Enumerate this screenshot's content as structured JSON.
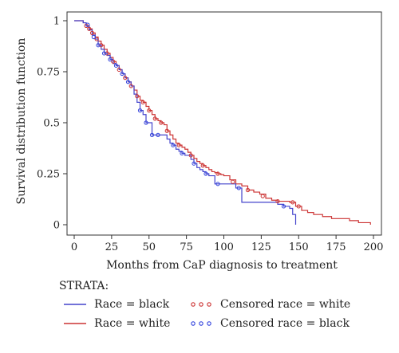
{
  "chart_data": {
    "type": "line",
    "title": "",
    "xlabel": "Months from CaP diagnosis to treatment",
    "ylabel": "Survival distribution function",
    "xlim": [
      0,
      200
    ],
    "ylim": [
      0,
      1
    ],
    "x_ticks": [
      0,
      25,
      50,
      75,
      100,
      125,
      150,
      175,
      200
    ],
    "y_ticks": [
      0,
      0.25,
      0.5,
      0.75,
      1
    ],
    "y_tick_labels": [
      "0",
      "0.25",
      "0.5",
      "0.75",
      "1"
    ],
    "grid": false,
    "legend_position": "bottom",
    "legend_title": "STRATA:",
    "series": [
      {
        "name": "Race = white",
        "kind": "step",
        "color": "#cc3333",
        "x": [
          0,
          6,
          8,
          10,
          12,
          14,
          16,
          18,
          20,
          22,
          24,
          26,
          28,
          30,
          32,
          34,
          36,
          38,
          40,
          42,
          44,
          46,
          48,
          50,
          52,
          54,
          56,
          58,
          60,
          62,
          64,
          66,
          68,
          70,
          72,
          74,
          76,
          78,
          80,
          82,
          84,
          86,
          88,
          90,
          92,
          94,
          96,
          98,
          100,
          104,
          108,
          112,
          116,
          120,
          124,
          128,
          132,
          136,
          140,
          144,
          148,
          152,
          156,
          160,
          166,
          172,
          178,
          184,
          190,
          196,
          198
        ],
        "y": [
          1,
          0.99,
          0.975,
          0.96,
          0.94,
          0.92,
          0.9,
          0.88,
          0.86,
          0.84,
          0.82,
          0.8,
          0.78,
          0.76,
          0.74,
          0.72,
          0.7,
          0.68,
          0.66,
          0.63,
          0.61,
          0.6,
          0.58,
          0.56,
          0.54,
          0.52,
          0.51,
          0.5,
          0.49,
          0.46,
          0.44,
          0.42,
          0.4,
          0.39,
          0.38,
          0.37,
          0.355,
          0.34,
          0.325,
          0.31,
          0.3,
          0.29,
          0.28,
          0.27,
          0.26,
          0.255,
          0.25,
          0.245,
          0.24,
          0.22,
          0.2,
          0.19,
          0.17,
          0.16,
          0.15,
          0.13,
          0.12,
          0.115,
          0.115,
          0.11,
          0.09,
          0.07,
          0.06,
          0.05,
          0.04,
          0.03,
          0.03,
          0.02,
          0.01,
          0.01,
          0
        ]
      },
      {
        "name": "Race = black",
        "kind": "step",
        "color": "#4444cc",
        "x": [
          0,
          6,
          8,
          10,
          12,
          14,
          16,
          18,
          20,
          22,
          24,
          26,
          28,
          30,
          32,
          34,
          36,
          38,
          40,
          42,
          44,
          46,
          48,
          50,
          52,
          54,
          56,
          58,
          60,
          62,
          64,
          66,
          68,
          70,
          72,
          74,
          76,
          78,
          80,
          82,
          84,
          86,
          88,
          90,
          92,
          94,
          96,
          98,
          100,
          104,
          108,
          112,
          116,
          120,
          124,
          128,
          132,
          136,
          140,
          144,
          146,
          148
        ],
        "y": [
          1,
          0.99,
          0.975,
          0.955,
          0.93,
          0.91,
          0.88,
          0.86,
          0.84,
          0.83,
          0.81,
          0.79,
          0.78,
          0.76,
          0.74,
          0.72,
          0.7,
          0.68,
          0.64,
          0.6,
          0.56,
          0.54,
          0.5,
          0.5,
          0.44,
          0.44,
          0.44,
          0.44,
          0.44,
          0.42,
          0.4,
          0.39,
          0.37,
          0.36,
          0.35,
          0.34,
          0.34,
          0.32,
          0.3,
          0.28,
          0.27,
          0.26,
          0.25,
          0.24,
          0.24,
          0.2,
          0.2,
          0.2,
          0.2,
          0.2,
          0.18,
          0.11,
          0.11,
          0.11,
          0.11,
          0.11,
          0.11,
          0.1,
          0.09,
          0.08,
          0.05,
          0
        ]
      },
      {
        "name": "Censored race = white",
        "kind": "censor-markers",
        "color": "#cc3333",
        "x": [
          8,
          10,
          12,
          15,
          18,
          22,
          26,
          30,
          34,
          38,
          42,
          46,
          50,
          54,
          58,
          62,
          70,
          78,
          86,
          96,
          106,
          116,
          126,
          136,
          146,
          150
        ],
        "y": [
          0.975,
          0.96,
          0.94,
          0.91,
          0.88,
          0.84,
          0.8,
          0.76,
          0.72,
          0.68,
          0.63,
          0.6,
          0.56,
          0.52,
          0.5,
          0.46,
          0.39,
          0.34,
          0.29,
          0.25,
          0.21,
          0.17,
          0.14,
          0.115,
          0.11,
          0.09
        ]
      },
      {
        "name": "Censored race = black",
        "kind": "censor-markers",
        "color": "#3344dd",
        "x": [
          9,
          13,
          16,
          20,
          24,
          28,
          32,
          36,
          44,
          48,
          52,
          56,
          66,
          72,
          80,
          88,
          96,
          110,
          140
        ],
        "y": [
          0.98,
          0.92,
          0.88,
          0.84,
          0.81,
          0.78,
          0.74,
          0.7,
          0.56,
          0.5,
          0.44,
          0.44,
          0.39,
          0.35,
          0.3,
          0.25,
          0.2,
          0.18,
          0.09
        ]
      }
    ],
    "legend": [
      {
        "label": "Race = black",
        "kind": "line",
        "color": "#4444cc"
      },
      {
        "label": "Censored race = white",
        "kind": "markers",
        "color": "#cc3333"
      },
      {
        "label": "Race = white",
        "kind": "line",
        "color": "#cc3333"
      },
      {
        "label": "Censored race = black",
        "kind": "markers",
        "color": "#3344dd"
      }
    ]
  }
}
